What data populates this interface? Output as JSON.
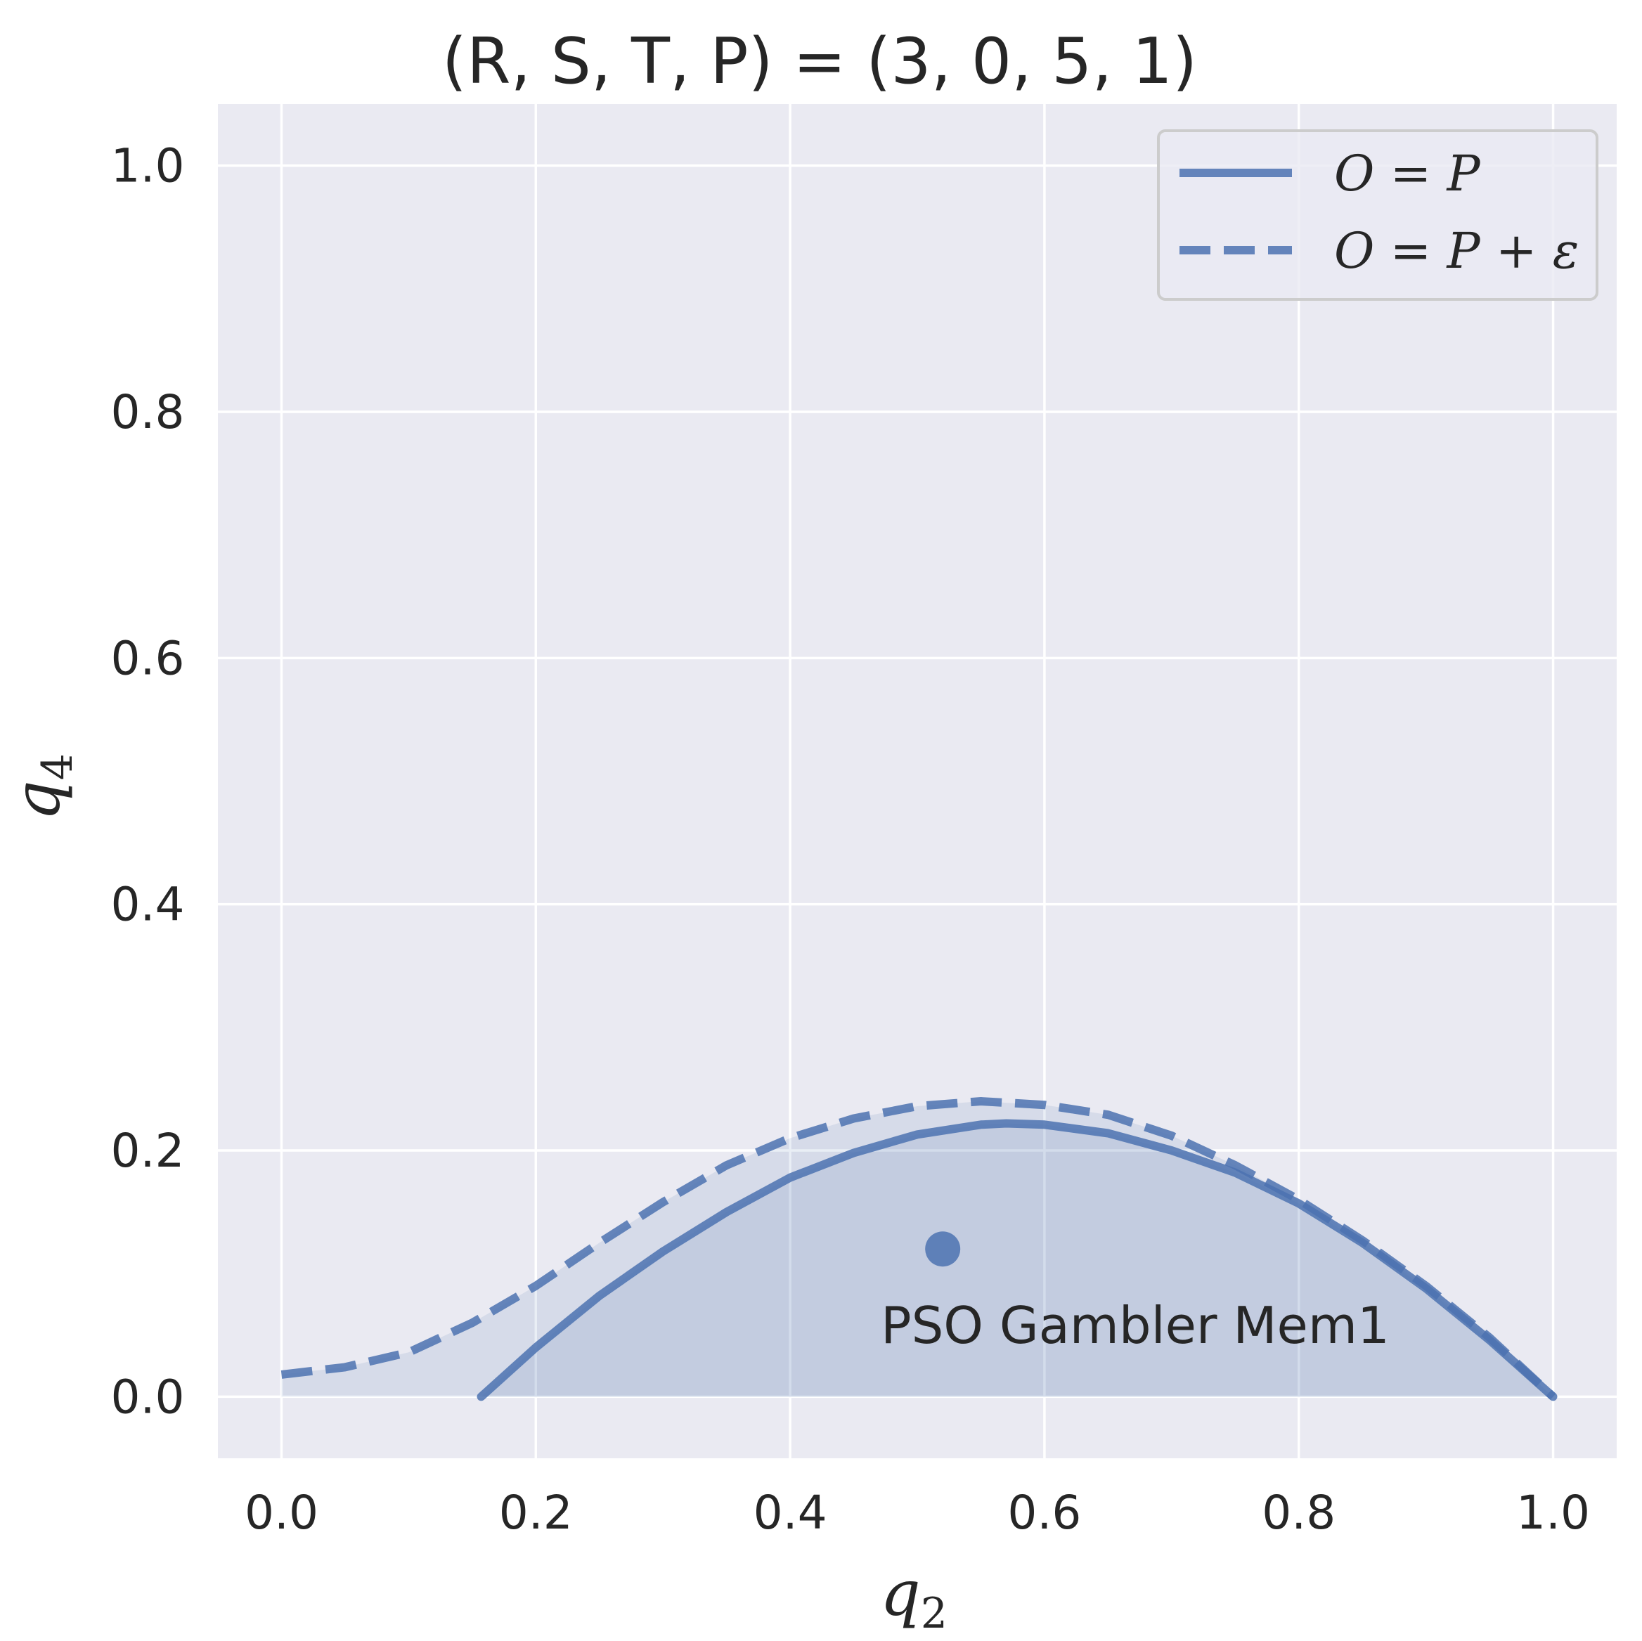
{
  "chart_data": {
    "type": "line",
    "title": "(R, S, T, P) = (3, 0, 5, 1)",
    "xlabel": "q",
    "xlabel_sub": "2",
    "ylabel": "q",
    "ylabel_sub": "4",
    "xlim": [
      -0.05,
      1.05
    ],
    "ylim": [
      -0.05,
      1.05
    ],
    "xticks": [
      0.0,
      0.2,
      0.4,
      0.6,
      0.8,
      1.0
    ],
    "yticks": [
      0.0,
      0.2,
      0.4,
      0.6,
      0.8,
      1.0
    ],
    "xtick_labels": [
      "0.0",
      "0.2",
      "0.4",
      "0.6",
      "0.8",
      "1.0"
    ],
    "ytick_labels": [
      "0.0",
      "0.2",
      "0.4",
      "0.6",
      "0.8",
      "1.0"
    ],
    "grid": true,
    "legend_position": "top-right",
    "colors": {
      "series": "#4c72b0",
      "background": "#eaeaf2",
      "grid": "#ffffff",
      "fill": "#4c72b0"
    },
    "series": [
      {
        "name": "O = P",
        "style": "solid",
        "x": [
          0.157,
          0.2,
          0.25,
          0.3,
          0.35,
          0.4,
          0.45,
          0.5,
          0.55,
          0.57,
          0.6,
          0.65,
          0.7,
          0.75,
          0.8,
          0.85,
          0.9,
          0.95,
          1.0
        ],
        "y": [
          0.0,
          0.04,
          0.082,
          0.118,
          0.15,
          0.178,
          0.198,
          0.213,
          0.221,
          0.222,
          0.221,
          0.214,
          0.2,
          0.182,
          0.157,
          0.125,
          0.088,
          0.046,
          0.0
        ]
      },
      {
        "name": "O = P + ε",
        "style": "dashed",
        "x": [
          0.0,
          0.05,
          0.1,
          0.15,
          0.2,
          0.25,
          0.3,
          0.35,
          0.4,
          0.45,
          0.5,
          0.55,
          0.6,
          0.65,
          0.7,
          0.75,
          0.8,
          0.85,
          0.9,
          0.95,
          1.0
        ],
        "y": [
          0.018,
          0.024,
          0.036,
          0.06,
          0.09,
          0.125,
          0.158,
          0.188,
          0.21,
          0.226,
          0.236,
          0.24,
          0.237,
          0.229,
          0.212,
          0.188,
          0.16,
          0.127,
          0.09,
          0.048,
          0.0
        ]
      }
    ],
    "annotations": [
      {
        "label": "PSO Gambler Mem1",
        "x": 0.52,
        "y": 0.12
      }
    ]
  }
}
